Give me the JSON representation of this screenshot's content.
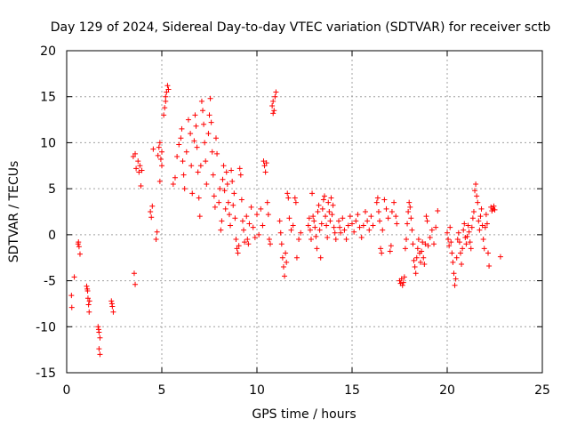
{
  "chart_data": {
    "type": "scatter",
    "title": "Day 129 of 2024, Sidereal Day-to-day VTEC variation (SDTVAR) for receiver sctb",
    "xlabel": "GPS time / hours",
    "ylabel": "SDTVAR / TECUs",
    "xlim": [
      0,
      25
    ],
    "ylim": [
      -15,
      20
    ],
    "xticks": [
      "0",
      "5",
      "10",
      "15",
      "20",
      "25"
    ],
    "yticks": [
      "-15",
      "-10",
      "-5",
      "0",
      "5",
      "10",
      "15",
      "20"
    ],
    "grid": true,
    "marker": "+",
    "color": "#ff0000",
    "series": [
      {
        "name": "SDTVAR",
        "points": [
          [
            0.25,
            -6.6
          ],
          [
            0.27,
            -7.9
          ],
          [
            0.4,
            -4.6
          ],
          [
            0.6,
            -1.0
          ],
          [
            0.65,
            -1.3
          ],
          [
            0.7,
            -2.1
          ],
          [
            0.62,
            -0.8
          ],
          [
            1.05,
            -5.6
          ],
          [
            1.1,
            -6.1
          ],
          [
            1.12,
            -6.9
          ],
          [
            1.15,
            -7.6
          ],
          [
            1.18,
            -8.4
          ],
          [
            1.08,
            -5.9
          ],
          [
            1.2,
            -7.2
          ],
          [
            1.65,
            -10.0
          ],
          [
            1.7,
            -10.6
          ],
          [
            1.75,
            -11.2
          ],
          [
            1.7,
            -12.4
          ],
          [
            1.75,
            -13.0
          ],
          [
            1.68,
            -10.3
          ],
          [
            2.35,
            -7.2
          ],
          [
            2.4,
            -7.8
          ],
          [
            2.45,
            -8.4
          ],
          [
            2.38,
            -7.5
          ],
          [
            3.55,
            -4.2
          ],
          [
            3.6,
            -5.4
          ],
          [
            3.5,
            8.5
          ],
          [
            3.6,
            8.8
          ],
          [
            3.65,
            7.2
          ],
          [
            3.75,
            8.0
          ],
          [
            3.85,
            7.5
          ],
          [
            3.9,
            5.3
          ],
          [
            3.95,
            7.0
          ],
          [
            3.8,
            6.8
          ],
          [
            4.4,
            2.5
          ],
          [
            4.45,
            1.9
          ],
          [
            4.5,
            3.1
          ],
          [
            4.55,
            9.3
          ],
          [
            4.7,
            -0.5
          ],
          [
            4.75,
            0.3
          ],
          [
            4.8,
            8.6
          ],
          [
            4.85,
            9.5
          ],
          [
            4.9,
            10.0
          ],
          [
            4.95,
            8.2
          ],
          [
            5.0,
            9.0
          ],
          [
            4.9,
            5.8
          ],
          [
            5.0,
            7.5
          ],
          [
            5.1,
            13.0
          ],
          [
            5.15,
            13.8
          ],
          [
            5.2,
            14.5
          ],
          [
            5.25,
            15.5
          ],
          [
            5.3,
            16.2
          ],
          [
            5.2,
            15.0
          ],
          [
            5.35,
            15.8
          ],
          [
            5.6,
            5.5
          ],
          [
            5.7,
            6.2
          ],
          [
            5.8,
            8.5
          ],
          [
            5.9,
            9.8
          ],
          [
            6.0,
            10.5
          ],
          [
            6.05,
            11.5
          ],
          [
            6.1,
            8.0
          ],
          [
            6.15,
            6.5
          ],
          [
            6.2,
            5.0
          ],
          [
            6.3,
            9.0
          ],
          [
            6.4,
            12.5
          ],
          [
            6.5,
            11.0
          ],
          [
            6.55,
            7.5
          ],
          [
            6.6,
            4.5
          ],
          [
            6.7,
            10.2
          ],
          [
            6.75,
            13.0
          ],
          [
            6.8,
            11.8
          ],
          [
            6.85,
            9.5
          ],
          [
            6.9,
            6.8
          ],
          [
            6.95,
            4.0
          ],
          [
            7.0,
            2.0
          ],
          [
            7.05,
            7.5
          ],
          [
            7.1,
            14.5
          ],
          [
            7.15,
            13.5
          ],
          [
            7.2,
            12.0
          ],
          [
            7.25,
            10.0
          ],
          [
            7.3,
            8.0
          ],
          [
            7.35,
            5.5
          ],
          [
            7.45,
            11.0
          ],
          [
            7.5,
            13.0
          ],
          [
            7.55,
            14.8
          ],
          [
            7.6,
            12.2
          ],
          [
            7.65,
            9.0
          ],
          [
            7.7,
            6.5
          ],
          [
            7.75,
            4.2
          ],
          [
            7.8,
            3.0
          ],
          [
            7.85,
            10.5
          ],
          [
            7.9,
            8.8
          ],
          [
            8.0,
            3.5
          ],
          [
            8.05,
            5.0
          ],
          [
            8.1,
            0.5
          ],
          [
            8.15,
            1.5
          ],
          [
            8.2,
            6.0
          ],
          [
            8.25,
            7.5
          ],
          [
            8.3,
            4.8
          ],
          [
            8.35,
            2.8
          ],
          [
            8.4,
            6.8
          ],
          [
            8.45,
            5.5
          ],
          [
            8.5,
            3.5
          ],
          [
            8.55,
            2.2
          ],
          [
            8.6,
            1.0
          ],
          [
            8.65,
            7.0
          ],
          [
            8.7,
            5.8
          ],
          [
            8.75,
            3.2
          ],
          [
            8.8,
            4.5
          ],
          [
            8.85,
            1.8
          ],
          [
            8.9,
            -0.5
          ],
          [
            8.95,
            -1.5
          ],
          [
            9.0,
            -2.0
          ],
          [
            9.05,
            -1.2
          ],
          [
            9.1,
            7.2
          ],
          [
            9.15,
            6.5
          ],
          [
            9.2,
            3.8
          ],
          [
            9.25,
            1.5
          ],
          [
            9.3,
            0.5
          ],
          [
            9.35,
            -0.8
          ],
          [
            9.45,
            2.0
          ],
          [
            9.5,
            -0.5
          ],
          [
            9.55,
            -1.0
          ],
          [
            9.6,
            1.2
          ],
          [
            9.7,
            3.0
          ],
          [
            9.8,
            0.8
          ],
          [
            9.9,
            -0.3
          ],
          [
            10.0,
            2.2
          ],
          [
            10.1,
            0.0
          ],
          [
            10.2,
            2.8
          ],
          [
            10.3,
            1.0
          ],
          [
            10.35,
            8.0
          ],
          [
            10.4,
            7.5
          ],
          [
            10.45,
            6.8
          ],
          [
            10.5,
            7.8
          ],
          [
            10.55,
            3.5
          ],
          [
            10.6,
            2.2
          ],
          [
            10.65,
            -0.5
          ],
          [
            10.7,
            -1.0
          ],
          [
            10.8,
            14.0
          ],
          [
            10.85,
            14.5
          ],
          [
            10.9,
            13.5
          ],
          [
            10.95,
            15.0
          ],
          [
            11.0,
            15.5
          ],
          [
            10.85,
            13.2
          ],
          [
            11.2,
            1.5
          ],
          [
            11.25,
            0.2
          ],
          [
            11.3,
            -1.0
          ],
          [
            11.35,
            -2.5
          ],
          [
            11.4,
            -3.5
          ],
          [
            11.45,
            -4.5
          ],
          [
            11.5,
            -2.0
          ],
          [
            11.55,
            -3.0
          ],
          [
            11.6,
            4.5
          ],
          [
            11.65,
            4.0
          ],
          [
            11.7,
            1.8
          ],
          [
            11.8,
            0.5
          ],
          [
            11.9,
            1.0
          ],
          [
            12.0,
            4.0
          ],
          [
            12.05,
            3.5
          ],
          [
            12.1,
            -2.5
          ],
          [
            12.2,
            -0.5
          ],
          [
            12.3,
            0.2
          ],
          [
            12.7,
            1.0
          ],
          [
            12.75,
            1.8
          ],
          [
            12.8,
            0.5
          ],
          [
            12.85,
            -0.5
          ],
          [
            12.9,
            4.5
          ],
          [
            12.95,
            2.0
          ],
          [
            13.0,
            1.5
          ],
          [
            13.05,
            0.8
          ],
          [
            13.1,
            -0.2
          ],
          [
            13.15,
            -1.5
          ],
          [
            13.2,
            2.5
          ],
          [
            13.25,
            3.2
          ],
          [
            13.3,
            0.5
          ],
          [
            13.35,
            -2.5
          ],
          [
            13.4,
            1.2
          ],
          [
            13.45,
            2.8
          ],
          [
            13.5,
            3.8
          ],
          [
            13.55,
            4.2
          ],
          [
            13.6,
            2.0
          ],
          [
            13.65,
            1.0
          ],
          [
            13.7,
            -0.3
          ],
          [
            13.75,
            3.5
          ],
          [
            13.8,
            2.5
          ],
          [
            13.85,
            1.5
          ],
          [
            13.9,
            4.0
          ],
          [
            13.95,
            2.2
          ],
          [
            14.0,
            3.2
          ],
          [
            14.05,
            0.8
          ],
          [
            14.1,
            0.2
          ],
          [
            14.15,
            -0.5
          ],
          [
            14.3,
            1.5
          ],
          [
            14.35,
            0.8
          ],
          [
            14.4,
            0.2
          ],
          [
            14.5,
            1.8
          ],
          [
            14.6,
            0.5
          ],
          [
            14.7,
            -0.5
          ],
          [
            14.8,
            1.0
          ],
          [
            14.9,
            2.0
          ],
          [
            15.0,
            1.2
          ],
          [
            15.1,
            0.3
          ],
          [
            15.2,
            1.5
          ],
          [
            15.3,
            2.2
          ],
          [
            15.4,
            0.8
          ],
          [
            15.5,
            -0.3
          ],
          [
            15.6,
            1.0
          ],
          [
            15.7,
            2.5
          ],
          [
            15.8,
            1.5
          ],
          [
            15.9,
            0.5
          ],
          [
            16.0,
            2.0
          ],
          [
            16.1,
            1.0
          ],
          [
            16.3,
            3.5
          ],
          [
            16.35,
            4.0
          ],
          [
            16.4,
            2.5
          ],
          [
            16.45,
            1.5
          ],
          [
            16.5,
            -1.5
          ],
          [
            16.55,
            -2.0
          ],
          [
            16.6,
            0.5
          ],
          [
            16.7,
            3.8
          ],
          [
            16.8,
            2.8
          ],
          [
            16.9,
            1.8
          ],
          [
            17.0,
            -1.8
          ],
          [
            17.05,
            -1.2
          ],
          [
            17.1,
            2.5
          ],
          [
            17.2,
            3.5
          ],
          [
            17.3,
            2.0
          ],
          [
            17.35,
            1.2
          ],
          [
            17.5,
            -5.0
          ],
          [
            17.55,
            -5.3
          ],
          [
            17.6,
            -4.8
          ],
          [
            17.65,
            -5.5
          ],
          [
            17.7,
            -5.2
          ],
          [
            17.75,
            -4.6
          ],
          [
            17.8,
            -1.5
          ],
          [
            17.85,
            -0.5
          ],
          [
            17.9,
            1.2
          ],
          [
            17.95,
            2.5
          ],
          [
            18.0,
            3.5
          ],
          [
            18.05,
            3.0
          ],
          [
            18.1,
            1.8
          ],
          [
            18.15,
            0.5
          ],
          [
            18.2,
            -1.0
          ],
          [
            18.25,
            -2.8
          ],
          [
            18.3,
            -3.5
          ],
          [
            18.35,
            -4.2
          ],
          [
            18.4,
            -2.5
          ],
          [
            18.45,
            -1.5
          ],
          [
            18.5,
            -0.5
          ],
          [
            18.55,
            -2.0
          ],
          [
            18.6,
            -3.0
          ],
          [
            18.65,
            -1.8
          ],
          [
            18.7,
            -0.8
          ],
          [
            18.75,
            -2.5
          ],
          [
            18.8,
            -3.2
          ],
          [
            18.85,
            -1.0
          ],
          [
            18.9,
            2.0
          ],
          [
            18.95,
            1.5
          ],
          [
            19.0,
            -1.2
          ],
          [
            19.1,
            -0.3
          ],
          [
            19.2,
            0.5
          ],
          [
            19.3,
            -1.0
          ],
          [
            19.4,
            0.8
          ],
          [
            19.5,
            2.6
          ],
          [
            20.0,
            0.2
          ],
          [
            20.05,
            -0.5
          ],
          [
            20.1,
            -1.2
          ],
          [
            20.15,
            0.8
          ],
          [
            20.2,
            -0.8
          ],
          [
            20.25,
            -2.0
          ],
          [
            20.3,
            -3.0
          ],
          [
            20.35,
            -4.2
          ],
          [
            20.4,
            -5.5
          ],
          [
            20.45,
            -4.8
          ],
          [
            20.5,
            -2.5
          ],
          [
            20.55,
            -0.5
          ],
          [
            20.6,
            0.2
          ],
          [
            20.65,
            -0.8
          ],
          [
            20.7,
            -2.0
          ],
          [
            20.75,
            -3.2
          ],
          [
            20.8,
            -1.5
          ],
          [
            20.85,
            0.5
          ],
          [
            20.9,
            1.2
          ],
          [
            20.95,
            -0.3
          ],
          [
            21.0,
            -1.0
          ],
          [
            21.05,
            -0.2
          ],
          [
            21.1,
            1.0
          ],
          [
            21.15,
            0.3
          ],
          [
            21.2,
            -0.8
          ],
          [
            21.25,
            -1.5
          ],
          [
            21.3,
            0.8
          ],
          [
            21.35,
            1.8
          ],
          [
            21.4,
            2.5
          ],
          [
            21.45,
            4.8
          ],
          [
            21.5,
            5.5
          ],
          [
            21.55,
            4.2
          ],
          [
            21.6,
            3.5
          ],
          [
            21.65,
            1.5
          ],
          [
            21.7,
            0.5
          ],
          [
            21.75,
            2.0
          ],
          [
            21.8,
            2.8
          ],
          [
            21.85,
            1.0
          ],
          [
            21.9,
            -0.5
          ],
          [
            21.95,
            -1.5
          ],
          [
            22.0,
            0.8
          ],
          [
            22.05,
            2.2
          ],
          [
            22.1,
            1.2
          ],
          [
            22.15,
            -2.0
          ],
          [
            22.2,
            -3.4
          ],
          [
            22.3,
            3.0
          ],
          [
            22.35,
            2.6
          ],
          [
            22.4,
            2.8
          ],
          [
            22.45,
            3.1
          ],
          [
            22.5,
            2.7
          ],
          [
            22.8,
            -2.4
          ]
        ]
      }
    ]
  }
}
